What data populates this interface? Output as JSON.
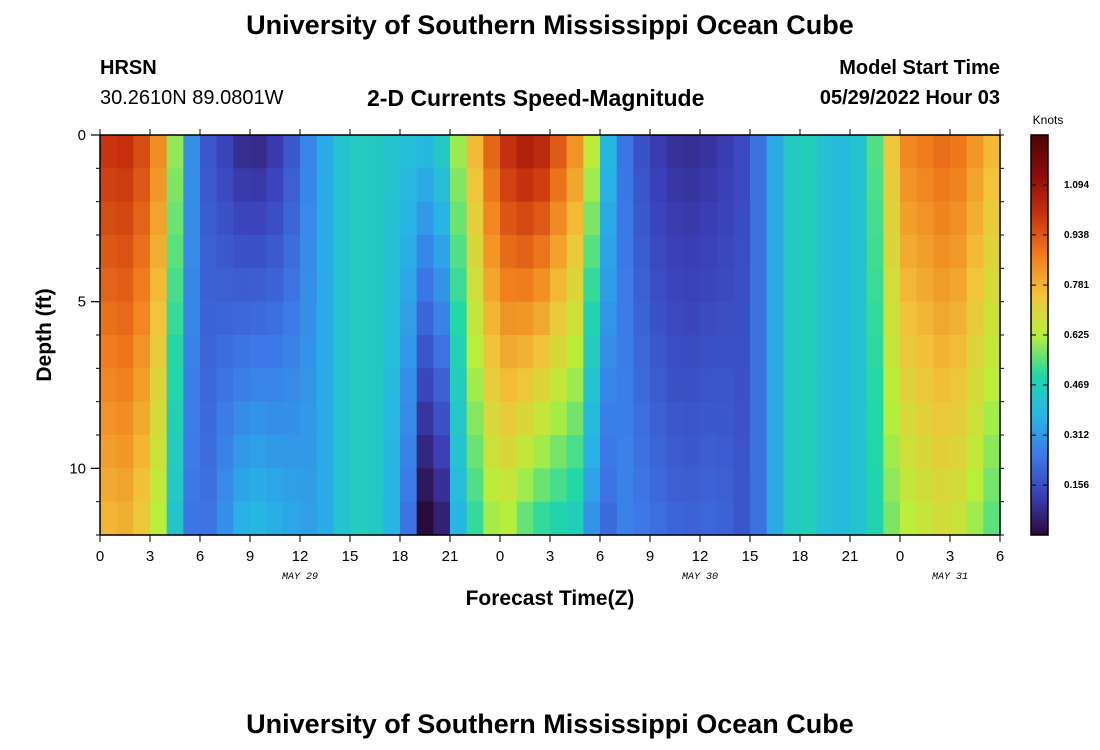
{
  "header": {
    "title": "University of Southern Mississippi Ocean Cube",
    "station_id": "HRSN",
    "coords": "30.2610N  89.0801W",
    "subtitle": "2-D Currents Speed-Magnitude",
    "model_start_label": "Model Start Time",
    "model_start_value": "05/29/2022 Hour 03"
  },
  "footer": {
    "title": "University of Southern Mississippi Ocean Cube"
  },
  "colors": {
    "ramp": [
      "#2a0a3a",
      "#3b3fb8",
      "#3c7ae8",
      "#27b6e6",
      "#22d7a8",
      "#b8ef3a",
      "#f2c33a",
      "#f07c1c",
      "#c8320e",
      "#8e0c0a",
      "#4a0404"
    ]
  },
  "chart_data": {
    "type": "heatmap",
    "xlabel": "Forecast Time(Z)",
    "ylabel": "Depth (ft)",
    "colorbar_label": "Knots",
    "x_range_hours": [
      0,
      54
    ],
    "y_range_ft": [
      0,
      12
    ],
    "x_tick_labels": [
      "0",
      "3",
      "6",
      "9",
      "12",
      "15",
      "18",
      "21",
      "0",
      "3",
      "6",
      "9",
      "12",
      "15",
      "18",
      "21",
      "0",
      "3",
      "6"
    ],
    "date_labels": [
      {
        "text": "MAY 29",
        "hour": 12
      },
      {
        "text": "MAY 30",
        "hour": 36
      },
      {
        "text": "MAY 31",
        "hour": 51
      }
    ],
    "y_ticks": [
      {
        "label": "0",
        "value": 0
      },
      {
        "label": "5",
        "value": 5
      },
      {
        "label": "10",
        "value": 10
      }
    ],
    "colorbar_ticks": [
      "1.094",
      "0.938",
      "0.781",
      "0.625",
      "0.469",
      "0.312",
      "0.156"
    ],
    "colorbar_range": [
      0,
      1.25
    ],
    "depths_ft": [
      0.5,
      1.5,
      2.5,
      3.5,
      4.5,
      5.5,
      6.5,
      7.5,
      8.5,
      9.5,
      10.5,
      11.5
    ],
    "speed_profile": [
      {
        "hour": 0,
        "speed": 1.0,
        "decay": 0.02
      },
      {
        "hour": 2,
        "speed": 1.02,
        "decay": 0.02
      },
      {
        "hour": 4,
        "speed": 0.8,
        "decay": 0.02
      },
      {
        "hour": 5,
        "speed": 0.4,
        "decay": 0.01
      },
      {
        "hour": 6,
        "speed": 0.2,
        "decay": 0.0
      },
      {
        "hour": 9,
        "speed": 0.05,
        "decay": -0.03
      },
      {
        "hour": 11,
        "speed": 0.12,
        "decay": -0.02
      },
      {
        "hour": 13,
        "speed": 0.32,
        "decay": 0.0
      },
      {
        "hour": 15,
        "speed": 0.46,
        "decay": 0.0
      },
      {
        "hour": 17,
        "speed": 0.44,
        "decay": 0.0
      },
      {
        "hour": 19,
        "speed": 0.4,
        "decay": 0.02
      },
      {
        "hour": 20,
        "speed": 0.4,
        "decay": 0.05
      },
      {
        "hour": 21,
        "speed": 0.52,
        "decay": 0.02
      },
      {
        "hour": 22,
        "speed": 0.7,
        "decay": 0.02
      },
      {
        "hour": 24,
        "speed": 1.0,
        "decay": 0.03
      },
      {
        "hour": 26,
        "speed": 1.1,
        "decay": 0.05
      },
      {
        "hour": 29,
        "speed": 0.8,
        "decay": 0.03
      },
      {
        "hour": 30,
        "speed": 0.5,
        "decay": 0.03
      },
      {
        "hour": 31,
        "speed": 0.28,
        "decay": 0.0
      },
      {
        "hour": 33,
        "speed": 0.12,
        "decay": -0.01
      },
      {
        "hour": 35,
        "speed": 0.08,
        "decay": -0.01
      },
      {
        "hour": 37,
        "speed": 0.1,
        "decay": -0.01
      },
      {
        "hour": 39,
        "speed": 0.16,
        "decay": 0.0
      },
      {
        "hour": 40,
        "speed": 0.3,
        "decay": 0.0
      },
      {
        "hour": 42,
        "speed": 0.5,
        "decay": 0.0
      },
      {
        "hour": 44,
        "speed": 0.38,
        "decay": 0.0
      },
      {
        "hour": 46,
        "speed": 0.44,
        "decay": 0.0
      },
      {
        "hour": 48,
        "speed": 0.85,
        "decay": 0.02
      },
      {
        "hour": 51,
        "speed": 0.92,
        "decay": 0.02
      },
      {
        "hour": 54,
        "speed": 0.75,
        "decay": 0.02
      }
    ]
  }
}
